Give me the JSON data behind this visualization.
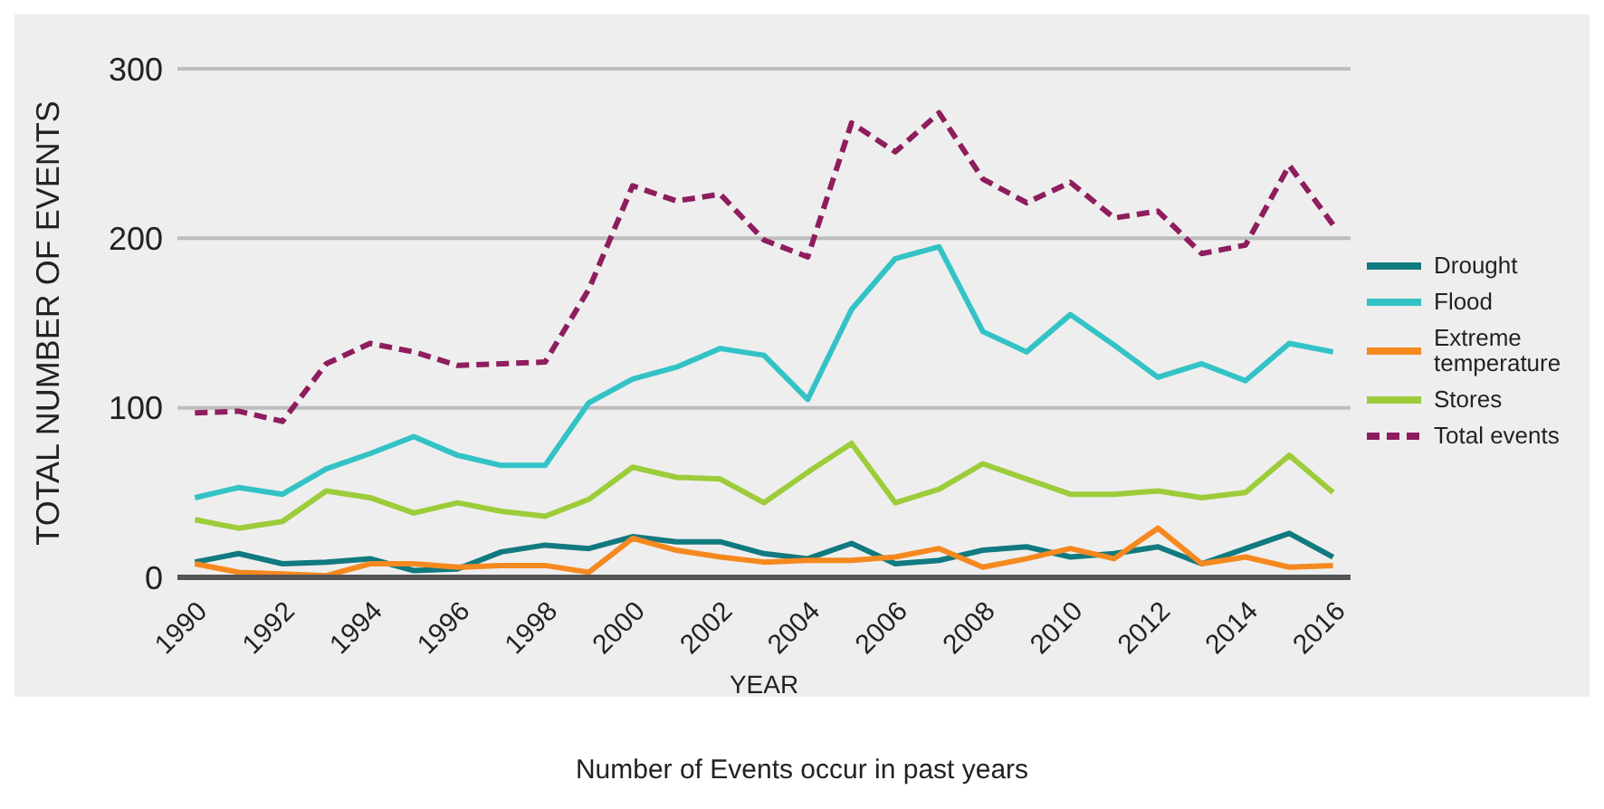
{
  "chart_data": {
    "type": "line",
    "title": "Number of Events occur in past years",
    "xlabel": "YEAR",
    "ylabel": "TOTAL NUMBER OF EVENTS",
    "x": [
      1990,
      1991,
      1992,
      1993,
      1994,
      1995,
      1996,
      1997,
      1998,
      1999,
      2000,
      2001,
      2002,
      2003,
      2004,
      2005,
      2006,
      2007,
      2008,
      2009,
      2010,
      2011,
      2012,
      2013,
      2014,
      2015,
      2016
    ],
    "xlim": [
      1989.6,
      2016.4
    ],
    "xticks": [
      1990,
      1992,
      1994,
      1996,
      1998,
      2000,
      2002,
      2004,
      2006,
      2008,
      2010,
      2012,
      2014,
      2016
    ],
    "ylim": [
      0,
      300
    ],
    "yticks": [
      0,
      100,
      200,
      300
    ],
    "grid": "y",
    "legend": "right",
    "marker": "none",
    "series": [
      {
        "name": "Drought",
        "color": "#117a80",
        "values": [
          9,
          14,
          8,
          9,
          11,
          4,
          5,
          15,
          19,
          17,
          24,
          21,
          21,
          14,
          11,
          20,
          8,
          10,
          16,
          18,
          12,
          14,
          18,
          8,
          17,
          26,
          12
        ]
      },
      {
        "name": "Flood",
        "color": "#33c3c6",
        "values": [
          47,
          53,
          49,
          64,
          73,
          83,
          72,
          66,
          66,
          103,
          117,
          124,
          135,
          131,
          105,
          158,
          188,
          195,
          145,
          133,
          155,
          137,
          118,
          126,
          116,
          138,
          133
        ]
      },
      {
        "name": "Extreme temperature",
        "color": "#f5891f",
        "values": [
          8,
          3,
          2,
          1,
          8,
          8,
          6,
          7,
          7,
          3,
          23,
          16,
          12,
          9,
          10,
          10,
          12,
          17,
          6,
          11,
          17,
          11,
          29,
          8,
          12,
          6,
          7
        ]
      },
      {
        "name": "Stores",
        "color": "#9dcc3a",
        "values": [
          34,
          29,
          33,
          51,
          47,
          38,
          44,
          39,
          36,
          46,
          65,
          59,
          58,
          44,
          62,
          79,
          44,
          52,
          67,
          58,
          49,
          49,
          51,
          47,
          50,
          72,
          50
        ]
      },
      {
        "name": "Total events",
        "color": "#8e1d5e",
        "line_style": "dashed",
        "values": [
          97,
          98,
          92,
          126,
          138,
          133,
          125,
          126,
          127,
          170,
          231,
          222,
          226,
          199,
          189,
          268,
          251,
          274,
          235,
          221,
          233,
          212,
          216,
          191,
          196,
          243,
          208
        ]
      }
    ]
  }
}
